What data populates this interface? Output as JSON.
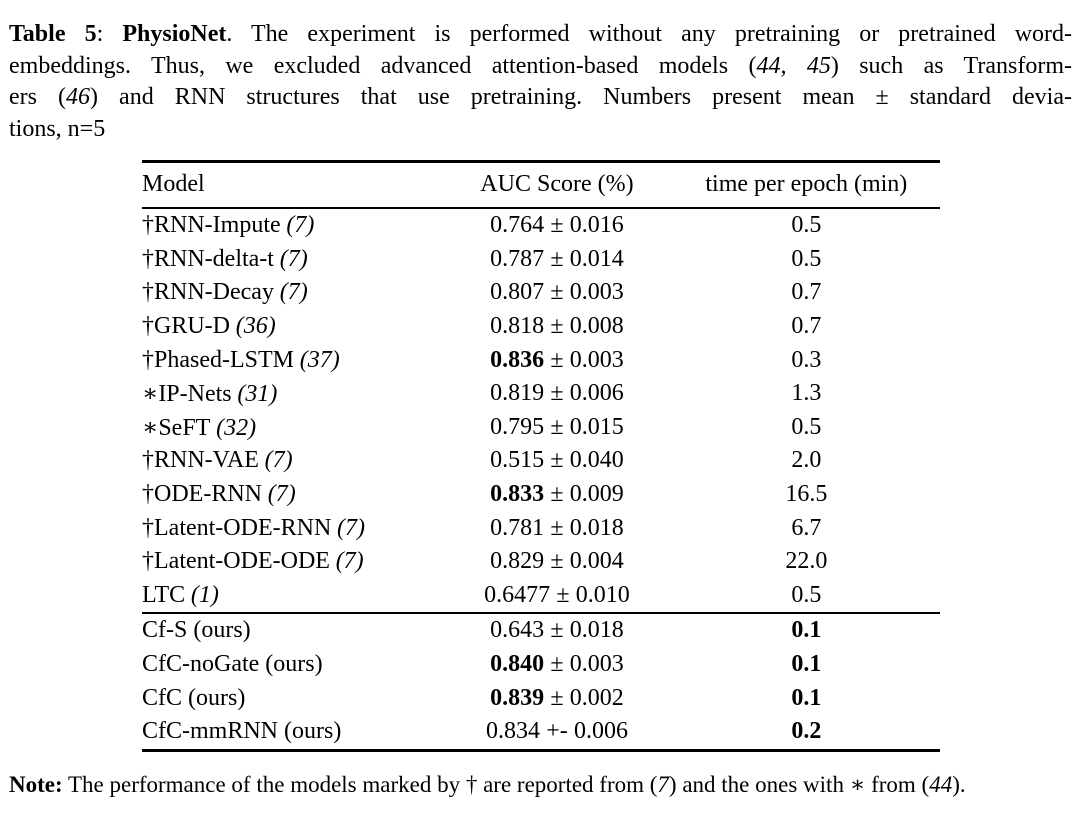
{
  "page": {
    "background": "#ffffff",
    "text_color": "#000000"
  },
  "caption": {
    "lines": [
      {
        "justify": true,
        "segments": [
          {
            "text": "Table 5",
            "bold": true
          },
          {
            "text": ": "
          },
          {
            "text": "PhysioNet",
            "bold": true
          },
          {
            "text": ". The experiment is performed without any pretraining or pretrained word-"
          }
        ]
      },
      {
        "justify": true,
        "segments": [
          {
            "text": "embeddings. Thus, we excluded advanced attention-based models ("
          },
          {
            "text": "44, 45",
            "italic": true
          },
          {
            "text": ") such as Transform-"
          }
        ]
      },
      {
        "justify": true,
        "segments": [
          {
            "text": "ers ("
          },
          {
            "text": "46",
            "italic": true
          },
          {
            "text": ") and RNN structures that use pretraining. Numbers present mean ± standard devia-"
          }
        ]
      },
      {
        "justify": false,
        "segments": [
          {
            "text": "tions, n=5"
          }
        ]
      }
    ]
  },
  "table": {
    "columns": [
      "Model",
      "AUC Score (%)",
      "time per epoch (min)"
    ],
    "rows": [
      {
        "model": "†RNN-Impute",
        "cite": "(7)",
        "auc_mean": "0.764",
        "auc_bold": false,
        "auc_sep": "±",
        "auc_std": "0.016",
        "time": "0.5",
        "time_bold": false,
        "rule_above": false
      },
      {
        "model": "†RNN-delta-t",
        "cite": "(7)",
        "auc_mean": "0.787",
        "auc_bold": false,
        "auc_sep": "±",
        "auc_std": "0.014",
        "time": "0.5",
        "time_bold": false,
        "rule_above": false
      },
      {
        "model": "†RNN-Decay",
        "cite": "(7)",
        "auc_mean": "0.807",
        "auc_bold": false,
        "auc_sep": "±",
        "auc_std": "0.003",
        "time": "0.7",
        "time_bold": false,
        "rule_above": false
      },
      {
        "model": "†GRU-D",
        "cite": "(36)",
        "auc_mean": "0.818",
        "auc_bold": false,
        "auc_sep": "±",
        "auc_std": "0.008",
        "time": "0.7",
        "time_bold": false,
        "rule_above": false
      },
      {
        "model": "†Phased-LSTM",
        "cite": "(37)",
        "auc_mean": "0.836",
        "auc_bold": true,
        "auc_sep": "±",
        "auc_std": "0.003",
        "time": "0.3",
        "time_bold": false,
        "rule_above": false
      },
      {
        "model": "∗IP-Nets",
        "cite": "(31)",
        "auc_mean": "0.819",
        "auc_bold": false,
        "auc_sep": "±",
        "auc_std": "0.006",
        "time": "1.3",
        "time_bold": false,
        "rule_above": false
      },
      {
        "model": "∗SeFT",
        "cite": "(32)",
        "auc_mean": "0.795",
        "auc_bold": false,
        "auc_sep": "±",
        "auc_std": "0.015",
        "time": "0.5",
        "time_bold": false,
        "rule_above": false
      },
      {
        "model": "†RNN-VAE",
        "cite": "(7)",
        "auc_mean": "0.515",
        "auc_bold": false,
        "auc_sep": "±",
        "auc_std": "0.040",
        "time": "2.0",
        "time_bold": false,
        "rule_above": false
      },
      {
        "model": "†ODE-RNN",
        "cite": "(7)",
        "auc_mean": "0.833",
        "auc_bold": true,
        "auc_sep": "±",
        "auc_std": "0.009",
        "time": "16.5",
        "time_bold": false,
        "rule_above": false
      },
      {
        "model": "†Latent-ODE-RNN",
        "cite": "(7)",
        "auc_mean": "0.781",
        "auc_bold": false,
        "auc_sep": "±",
        "auc_std": "0.018",
        "time": "6.7",
        "time_bold": false,
        "rule_above": false
      },
      {
        "model": "†Latent-ODE-ODE",
        "cite": "(7)",
        "auc_mean": "0.829",
        "auc_bold": false,
        "auc_sep": "±",
        "auc_std": "0.004",
        "time": "22.0",
        "time_bold": false,
        "rule_above": false
      },
      {
        "model": "LTC",
        "cite": "(1)",
        "auc_mean": "0.6477",
        "auc_bold": false,
        "auc_sep": "±",
        "auc_std": "0.010",
        "time": "0.5",
        "time_bold": false,
        "rule_above": false
      },
      {
        "model": "Cf-S (ours)",
        "cite": "",
        "auc_mean": "0.643",
        "auc_bold": false,
        "auc_sep": "±",
        "auc_std": "0.018",
        "time": "0.1",
        "time_bold": true,
        "rule_above": true
      },
      {
        "model": "CfC-noGate (ours)",
        "cite": "",
        "auc_mean": "0.840",
        "auc_bold": true,
        "auc_sep": "±",
        "auc_std": "0.003",
        "time": "0.1",
        "time_bold": true,
        "rule_above": false
      },
      {
        "model": "CfC (ours)",
        "cite": "",
        "auc_mean": "0.839",
        "auc_bold": true,
        "auc_sep": "±",
        "auc_std": "0.002",
        "time": "0.1",
        "time_bold": true,
        "rule_above": false
      },
      {
        "model": "CfC-mmRNN (ours)",
        "cite": "",
        "auc_mean": "0.834",
        "auc_bold": false,
        "auc_sep": "+-",
        "auc_std": "0.006",
        "time": "0.2",
        "time_bold": true,
        "rule_above": false
      }
    ]
  },
  "note": {
    "label": "Note:",
    "part1": " The performance of the models marked by † are reported from (",
    "cite1": "7",
    "part2": ") and the ones with ∗ from (",
    "cite2": "44",
    "part3": ")."
  }
}
